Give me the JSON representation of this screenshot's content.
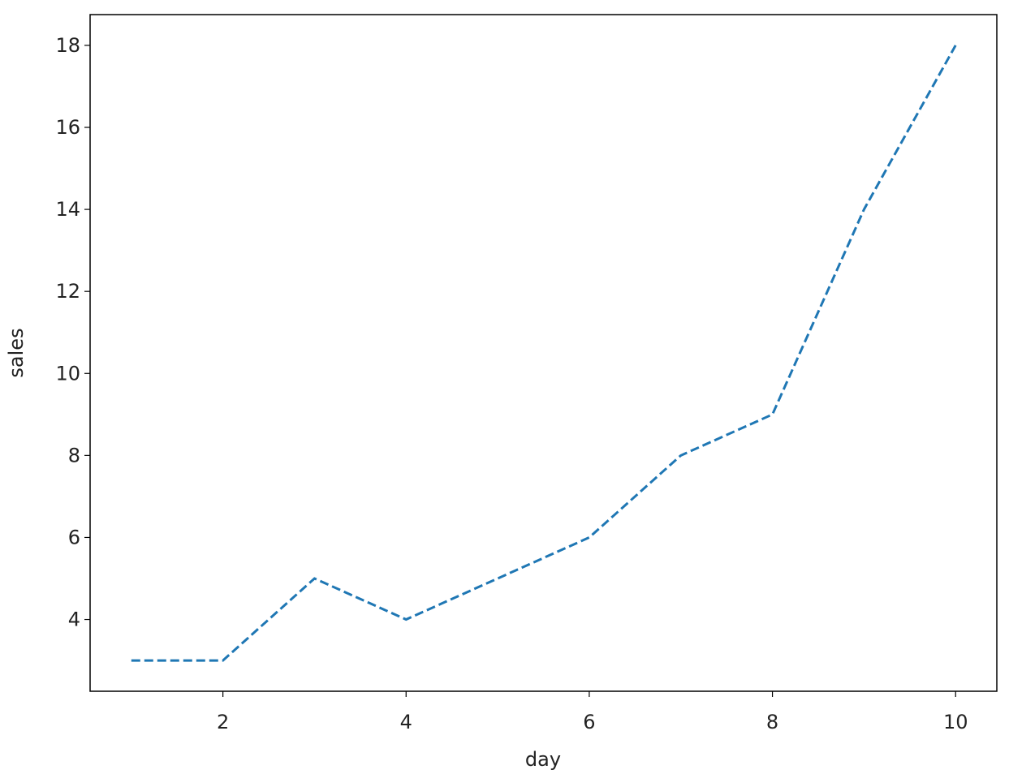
{
  "chart_data": {
    "type": "line",
    "x_label": "day",
    "y_label": "sales",
    "x": [
      1,
      2,
      3,
      4,
      5,
      6,
      7,
      8,
      9,
      10
    ],
    "series": [
      {
        "color": "#1f77b4",
        "dashed": true,
        "values": [
          3,
          3,
          5,
          4,
          5,
          6,
          8,
          9,
          14,
          18
        ]
      }
    ],
    "xlim": [
      0.55,
      10.45
    ],
    "ylim": [
      2.25,
      18.75
    ],
    "xticks": [
      2,
      4,
      6,
      8,
      10
    ],
    "yticks": [
      4,
      6,
      8,
      10,
      12,
      14,
      16,
      18
    ]
  }
}
